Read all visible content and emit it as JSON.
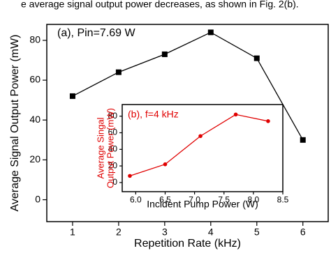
{
  "caption_fragment": "e average signal output power decreases, as shown in Fig. 2(b).",
  "chart_data": [
    {
      "type": "line",
      "annotation": "(a), Pin=7.69 W",
      "x_label": "Repetition Rate (kHz)",
      "y_label": "Average Signal Output Power (mW)",
      "x": [
        1,
        2,
        3,
        4,
        5,
        6
      ],
      "series": [
        {
          "color": "#000000",
          "marker": "square",
          "values": [
            52,
            64,
            73,
            84,
            71,
            30
          ]
        }
      ],
      "xlim": [
        0.44,
        6.55
      ],
      "ylim": [
        -11,
        88
      ],
      "xticks": [
        1,
        2,
        3,
        4,
        5,
        6
      ],
      "yticks": [
        0,
        20,
        40,
        60,
        80
      ]
    },
    {
      "type": "line",
      "annotation": "(b), f=4 kHz",
      "x_label": "Incident Pump Power (W)",
      "y_label": [
        "Average Singal",
        "Output Power (mW)"
      ],
      "x": [
        5.9,
        6.5,
        7.1,
        7.7,
        8.25
      ],
      "series": [
        {
          "color": "#e00000",
          "marker": "circle",
          "values": [
            8,
            22,
            56,
            82,
            74
          ]
        }
      ],
      "xlim": [
        5.77,
        8.5
      ],
      "ylim": [
        -11,
        94
      ],
      "xticks": [
        {
          "value": 6,
          "label": "6.0"
        },
        6.5,
        {
          "value": 7,
          "label": "7.0"
        },
        7.5,
        {
          "value": 8,
          "label": "8.0"
        },
        8.5
      ],
      "yticks": [
        0,
        20,
        40,
        60,
        80
      ]
    }
  ]
}
